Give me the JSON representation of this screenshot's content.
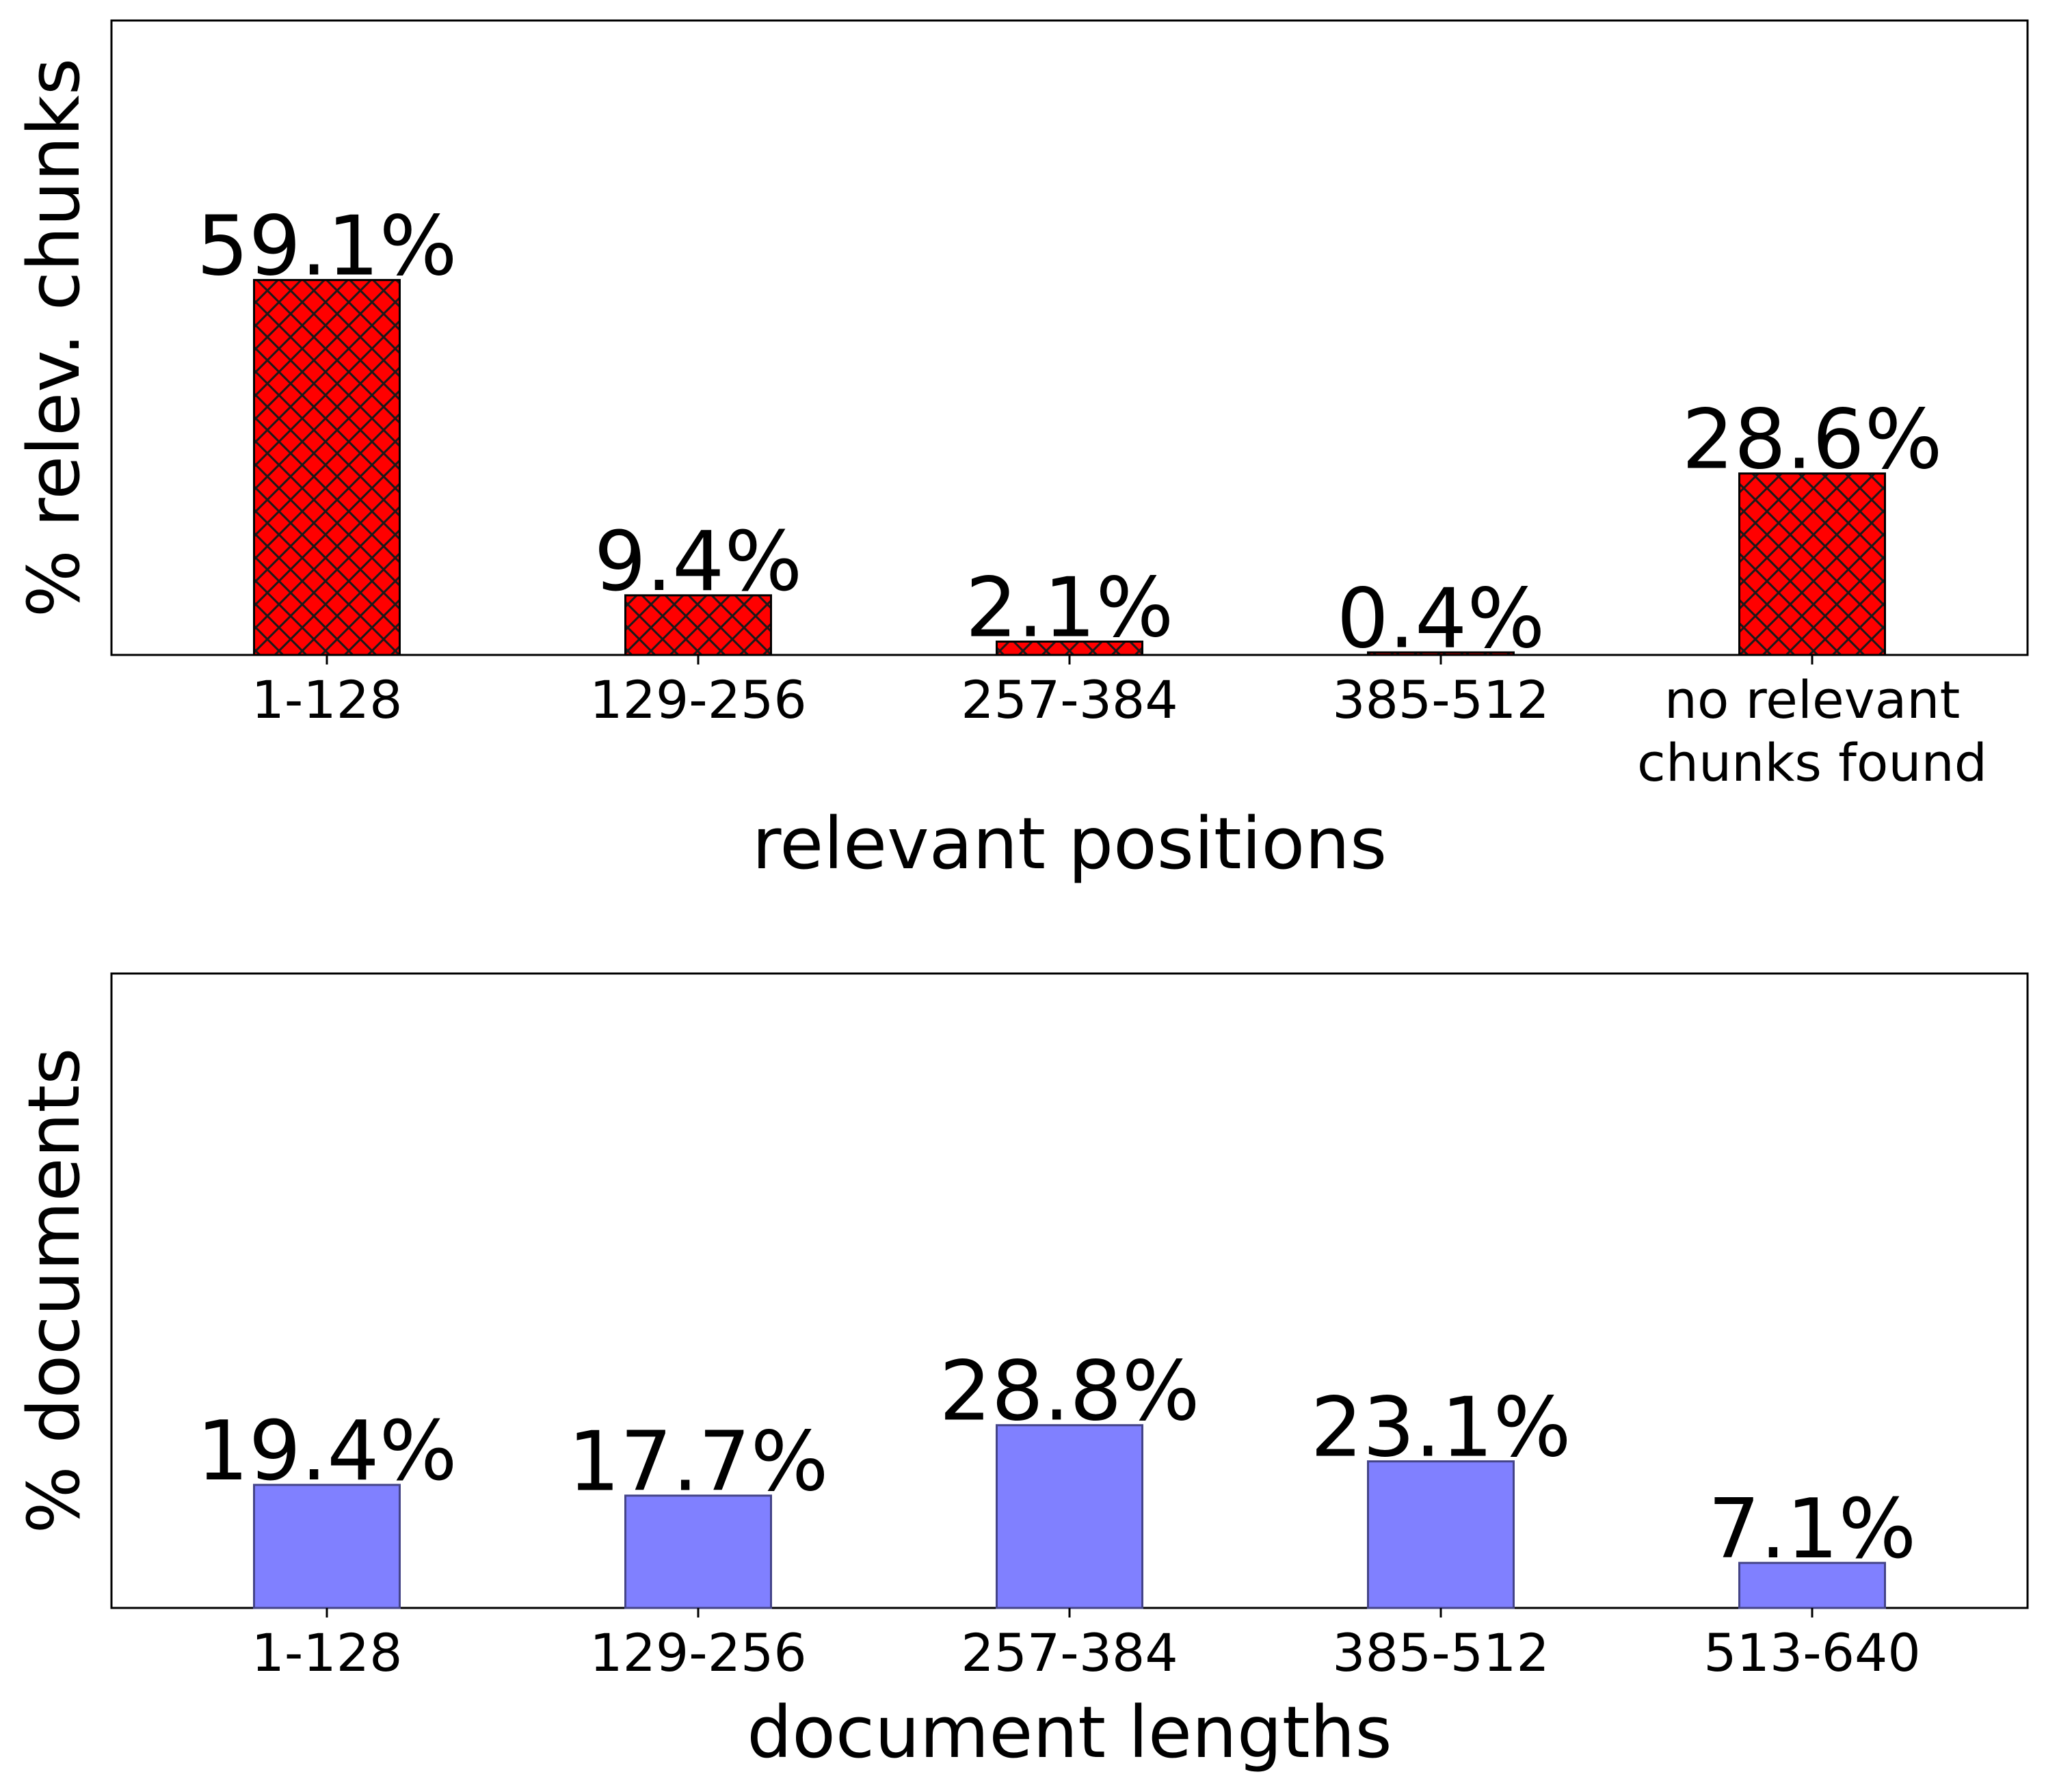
{
  "chart_data": [
    {
      "type": "bar",
      "categories": [
        "1-128",
        "129-256",
        "257-384",
        "385-512",
        "no relevant\nchunks found"
      ],
      "values": [
        59.1,
        9.4,
        2.1,
        0.4,
        28.6
      ],
      "value_labels": [
        "59.1%",
        "9.4%",
        "2.1%",
        "0.4%",
        "28.6%"
      ],
      "xlabel": "relevant positions",
      "ylabel": "% relev. chunks",
      "ylim": [
        0,
        100
      ],
      "y_ticks_shown": false,
      "grid": false,
      "bar_color": "#ff0000",
      "bar_edge_color": "#000000",
      "bar_hatch": "crosshatch"
    },
    {
      "type": "bar",
      "categories": [
        "1-128",
        "129-256",
        "257-384",
        "385-512",
        "513-640"
      ],
      "values": [
        19.4,
        17.7,
        28.8,
        23.1,
        7.1
      ],
      "value_labels": [
        "19.4%",
        "17.7%",
        "28.8%",
        "23.1%",
        "7.1%"
      ],
      "xlabel": "document lengths",
      "ylabel": "% documents",
      "ylim": [
        0,
        100
      ],
      "y_ticks_shown": false,
      "grid": false,
      "bar_color": "#8080ff",
      "bar_edge_color": "#444488",
      "bar_hatch": "none"
    }
  ]
}
